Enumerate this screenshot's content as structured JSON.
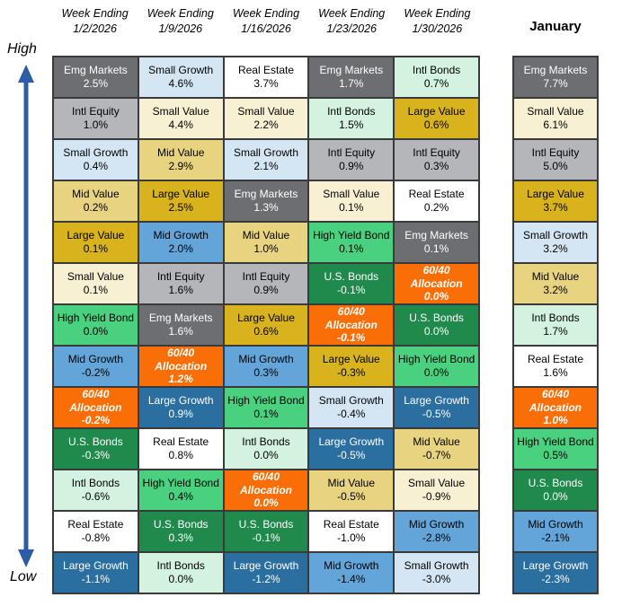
{
  "axis": {
    "high": "High",
    "low": "Low"
  },
  "arrow_color": "#2d5da4",
  "border_color": "#3a3a3a",
  "palette": {
    "Emg Markets": {
      "bg": "#6d6e71",
      "text": "#ffffff"
    },
    "Intl Equity": {
      "bg": "#b4b6b9",
      "text": "#000000"
    },
    "Small Growth": {
      "bg": "#d4e6f4",
      "text": "#000000"
    },
    "Small Value": {
      "bg": "#f7f0d2",
      "text": "#000000"
    },
    "Mid Value": {
      "bg": "#e8d480",
      "text": "#000000"
    },
    "Large Value": {
      "bg": "#d8b31d",
      "text": "#000000"
    },
    "Mid Growth": {
      "bg": "#64a5d9",
      "text": "#000000"
    },
    "Large Growth": {
      "bg": "#2a6f9f",
      "text": "#ffffff"
    },
    "High Yield Bond": {
      "bg": "#49d17f",
      "text": "#000000"
    },
    "U.S. Bonds": {
      "bg": "#1f8a4c",
      "text": "#ffffff"
    },
    "Intl Bonds": {
      "bg": "#d3f2df",
      "text": "#000000"
    },
    "Real Estate": {
      "bg": "#ffffff",
      "text": "#000000"
    },
    "60/40 Allocation": {
      "bg": "#f96e07",
      "text": "#ffffff",
      "emphasis": true
    }
  },
  "chart_data": {
    "type": "table",
    "description": "Weekly asset class total-return ranking quilt; each column sorted high to low",
    "week_columns": [
      {
        "header_line1": "Week Ending",
        "header_line2": "1/2/2026",
        "cells": [
          {
            "asset": "Emg Markets",
            "value": "2.5%"
          },
          {
            "asset": "Intl Equity",
            "value": "1.0%"
          },
          {
            "asset": "Small Growth",
            "value": "0.4%"
          },
          {
            "asset": "Mid Value",
            "value": "0.2%"
          },
          {
            "asset": "Large Value",
            "value": "0.1%"
          },
          {
            "asset": "Small Value",
            "value": "0.1%"
          },
          {
            "asset": "High Yield Bond",
            "value": "0.0%"
          },
          {
            "asset": "Mid Growth",
            "value": "-0.2%"
          },
          {
            "asset": "60/40 Allocation",
            "value": "-0.2%"
          },
          {
            "asset": "U.S. Bonds",
            "value": "-0.3%"
          },
          {
            "asset": "Intl Bonds",
            "value": "-0.6%"
          },
          {
            "asset": "Real Estate",
            "value": "-0.8%"
          },
          {
            "asset": "Large Growth",
            "value": "-1.1%"
          }
        ]
      },
      {
        "header_line1": "Week Ending",
        "header_line2": "1/9/2026",
        "cells": [
          {
            "asset": "Small Growth",
            "value": "4.6%"
          },
          {
            "asset": "Small Value",
            "value": "4.4%"
          },
          {
            "asset": "Mid Value",
            "value": "2.9%"
          },
          {
            "asset": "Large Value",
            "value": "2.5%"
          },
          {
            "asset": "Mid Growth",
            "value": "2.0%"
          },
          {
            "asset": "Intl Equity",
            "value": "1.6%"
          },
          {
            "asset": "Emg Markets",
            "value": "1.6%"
          },
          {
            "asset": "60/40 Allocation",
            "value": "1.2%"
          },
          {
            "asset": "Large Growth",
            "value": "0.9%"
          },
          {
            "asset": "Real Estate",
            "value": "0.8%"
          },
          {
            "asset": "High Yield Bond",
            "value": "0.4%"
          },
          {
            "asset": "U.S. Bonds",
            "value": "0.3%"
          },
          {
            "asset": "Intl Bonds",
            "value": "0.0%"
          }
        ]
      },
      {
        "header_line1": "Week Ending",
        "header_line2": "1/16/2026",
        "cells": [
          {
            "asset": "Real Estate",
            "value": "3.7%"
          },
          {
            "asset": "Small Value",
            "value": "2.2%"
          },
          {
            "asset": "Small Growth",
            "value": "2.1%"
          },
          {
            "asset": "Emg Markets",
            "value": "1.3%"
          },
          {
            "asset": "Mid Value",
            "value": "1.0%"
          },
          {
            "asset": "Intl Equity",
            "value": "0.9%"
          },
          {
            "asset": "Large Value",
            "value": "0.6%"
          },
          {
            "asset": "Mid Growth",
            "value": "0.3%"
          },
          {
            "asset": "High Yield Bond",
            "value": "0.1%"
          },
          {
            "asset": "Intl Bonds",
            "value": "0.0%"
          },
          {
            "asset": "60/40 Allocation",
            "value": "0.0%"
          },
          {
            "asset": "U.S. Bonds",
            "value": "-0.1%"
          },
          {
            "asset": "Large Growth",
            "value": "-1.2%"
          }
        ]
      },
      {
        "header_line1": "Week Ending",
        "header_line2": "1/23/2026",
        "cells": [
          {
            "asset": "Emg Markets",
            "value": "1.7%"
          },
          {
            "asset": "Intl Bonds",
            "value": "1.5%"
          },
          {
            "asset": "Intl Equity",
            "value": "0.9%"
          },
          {
            "asset": "Small Value",
            "value": "0.1%"
          },
          {
            "asset": "High Yield Bond",
            "value": "0.1%"
          },
          {
            "asset": "U.S. Bonds",
            "value": "-0.1%"
          },
          {
            "asset": "60/40 Allocation",
            "value": "-0.1%"
          },
          {
            "asset": "Large Value",
            "value": "-0.3%"
          },
          {
            "asset": "Small Growth",
            "value": "-0.4%"
          },
          {
            "asset": "Large Growth",
            "value": "-0.5%"
          },
          {
            "asset": "Mid Value",
            "value": "-0.5%"
          },
          {
            "asset": "Real Estate",
            "value": "-1.0%"
          },
          {
            "asset": "Mid Growth",
            "value": "-1.4%"
          }
        ]
      },
      {
        "header_line1": "Week Ending",
        "header_line2": "1/30/2026",
        "cells": [
          {
            "asset": "Intl Bonds",
            "value": "0.7%"
          },
          {
            "asset": "Large Value",
            "value": "0.6%"
          },
          {
            "asset": "Intl Equity",
            "value": "0.3%"
          },
          {
            "asset": "Real Estate",
            "value": "0.2%"
          },
          {
            "asset": "Emg Markets",
            "value": "0.1%"
          },
          {
            "asset": "60/40 Allocation",
            "value": "0.0%"
          },
          {
            "asset": "U.S. Bonds",
            "value": "0.0%"
          },
          {
            "asset": "High Yield Bond",
            "value": "0.0%"
          },
          {
            "asset": "Large Growth",
            "value": "-0.5%"
          },
          {
            "asset": "Mid Value",
            "value": "-0.7%"
          },
          {
            "asset": "Small Value",
            "value": "-0.9%"
          },
          {
            "asset": "Mid Growth",
            "value": "-2.8%"
          },
          {
            "asset": "Small Growth",
            "value": "-3.0%"
          }
        ]
      }
    ],
    "month_column": {
      "header": "January",
      "cells": [
        {
          "asset": "Emg Markets",
          "value": "7.7%"
        },
        {
          "asset": "Small Value",
          "value": "6.1%"
        },
        {
          "asset": "Intl Equity",
          "value": "5.0%"
        },
        {
          "asset": "Large Value",
          "value": "3.7%"
        },
        {
          "asset": "Small Growth",
          "value": "3.2%"
        },
        {
          "asset": "Mid Value",
          "value": "3.2%"
        },
        {
          "asset": "Intl Bonds",
          "value": "1.7%"
        },
        {
          "asset": "Real Estate",
          "value": "1.6%"
        },
        {
          "asset": "60/40 Allocation",
          "value": "1.0%"
        },
        {
          "asset": "High Yield Bond",
          "value": "0.5%"
        },
        {
          "asset": "U.S. Bonds",
          "value": "0.0%"
        },
        {
          "asset": "Mid Growth",
          "value": "-2.1%"
        },
        {
          "asset": "Large Growth",
          "value": "-2.3%"
        }
      ]
    }
  }
}
